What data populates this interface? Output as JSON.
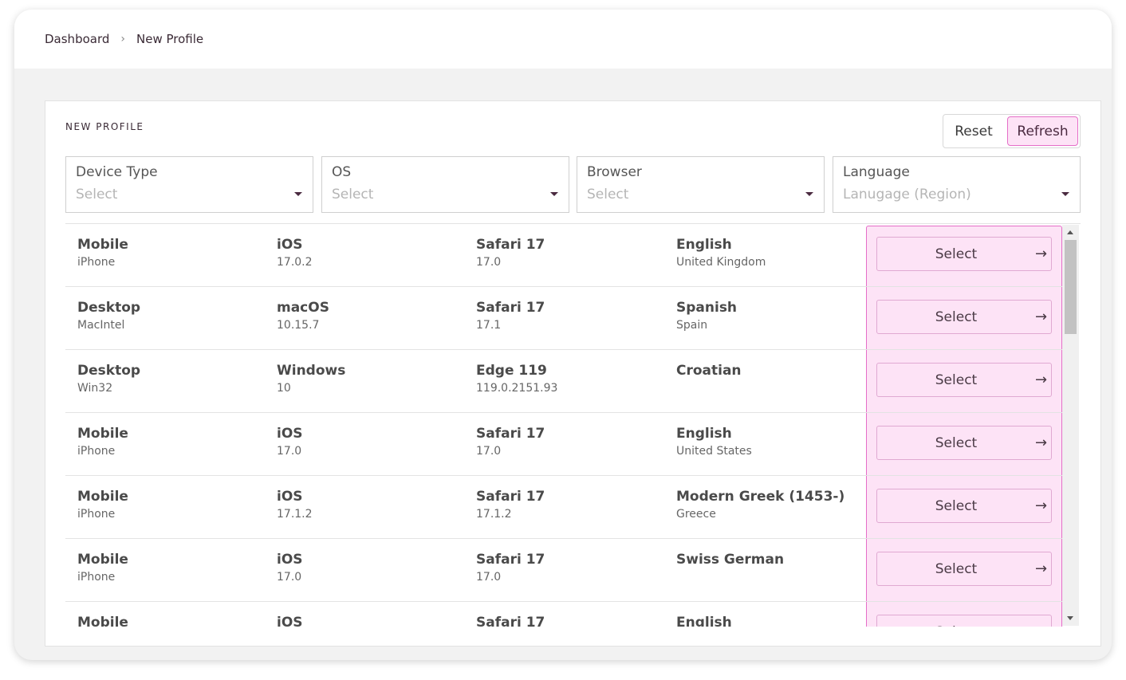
{
  "breadcrumb": {
    "home": "Dashboard",
    "separator": "›",
    "current": "New Profile"
  },
  "card": {
    "title": "NEW PROFILE",
    "reset_label": "Reset",
    "refresh_label": "Refresh"
  },
  "filters": [
    {
      "label": "Device Type",
      "placeholder": "Select"
    },
    {
      "label": "OS",
      "placeholder": "Select"
    },
    {
      "label": "Browser",
      "placeholder": "Select"
    },
    {
      "label": "Language",
      "placeholder": "Lanugage (Region)"
    }
  ],
  "rows": [
    {
      "device": "Mobile",
      "device_sub": "iPhone",
      "os": "iOS",
      "os_ver": "17.0.2",
      "browser": "Safari 17",
      "browser_ver": "17.0",
      "language": "English",
      "region": "United Kingdom",
      "action": "Select"
    },
    {
      "device": "Desktop",
      "device_sub": "MacIntel",
      "os": "macOS",
      "os_ver": "10.15.7",
      "browser": "Safari 17",
      "browser_ver": "17.1",
      "language": "Spanish",
      "region": "Spain",
      "action": "Select"
    },
    {
      "device": "Desktop",
      "device_sub": "Win32",
      "os": "Windows",
      "os_ver": "10",
      "browser": "Edge 119",
      "browser_ver": "119.0.2151.93",
      "language": "Croatian",
      "region": "",
      "action": "Select"
    },
    {
      "device": "Mobile",
      "device_sub": "iPhone",
      "os": "iOS",
      "os_ver": "17.0",
      "browser": "Safari 17",
      "browser_ver": "17.0",
      "language": "English",
      "region": "United States",
      "action": "Select"
    },
    {
      "device": "Mobile",
      "device_sub": "iPhone",
      "os": "iOS",
      "os_ver": "17.1.2",
      "browser": "Safari 17",
      "browser_ver": "17.1.2",
      "language": "Modern Greek (1453-)",
      "region": "Greece",
      "action": "Select"
    },
    {
      "device": "Mobile",
      "device_sub": "iPhone",
      "os": "iOS",
      "os_ver": "17.0",
      "browser": "Safari 17",
      "browser_ver": "17.0",
      "language": "Swiss German",
      "region": "",
      "action": "Select"
    },
    {
      "device": "Mobile",
      "device_sub": "",
      "os": "iOS",
      "os_ver": "",
      "browser": "Safari 17",
      "browser_ver": "",
      "language": "English",
      "region": "",
      "action": "Select"
    }
  ],
  "icons": {
    "arrow": "arrow-right-icon",
    "caret": "caret-down-icon"
  },
  "colors": {
    "accent_bg": "#fde3f6",
    "accent_border": "#e56ec8",
    "text_dark": "#3a2a35"
  }
}
